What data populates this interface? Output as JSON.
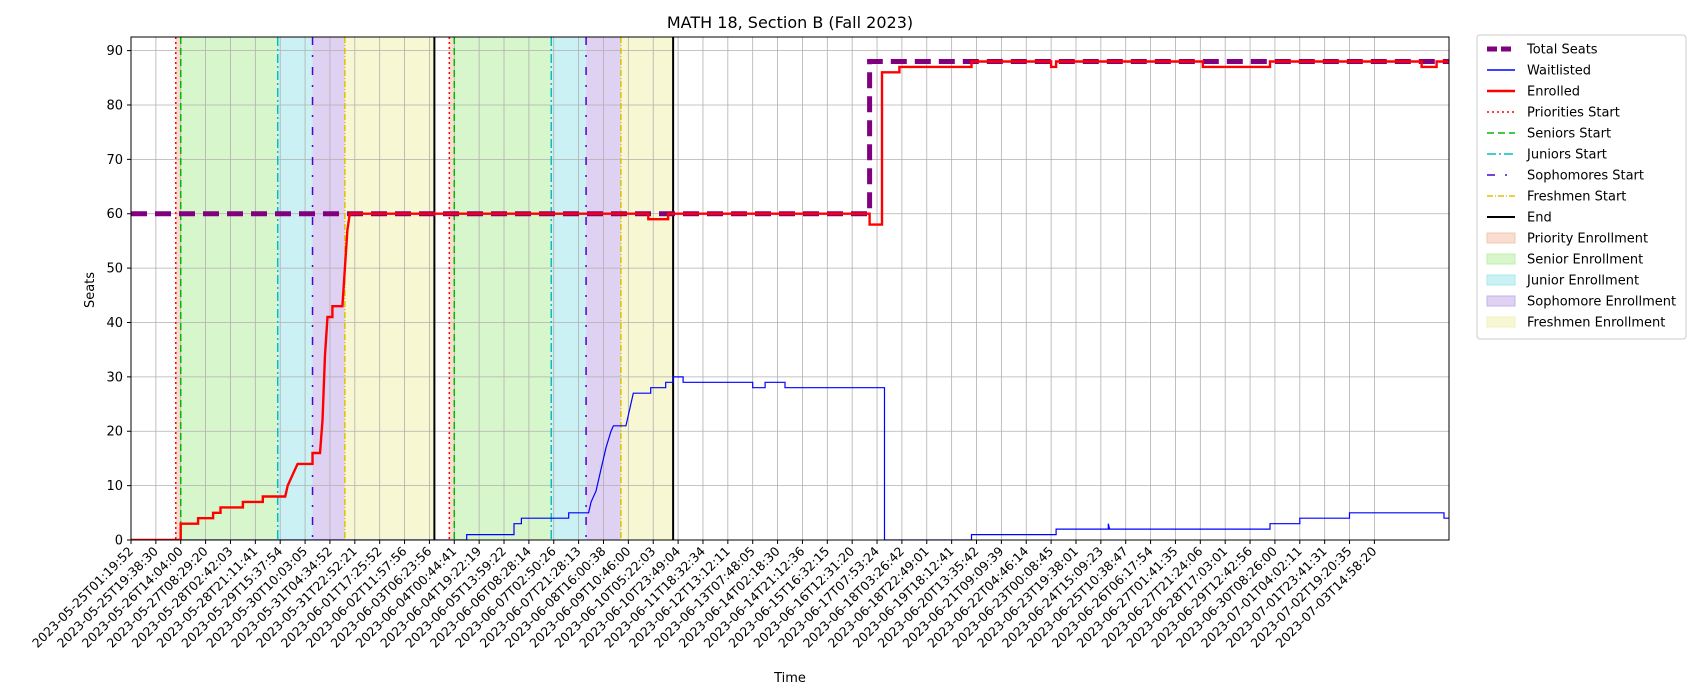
{
  "chart_data": {
    "type": "line",
    "title": "MATH 18, Section B (Fall 2023)",
    "xlabel": "Time",
    "ylabel": "Seats",
    "x_index_range": [
      0,
      53
    ],
    "ylim": [
      0,
      92.5
    ],
    "y_ticks": [
      0,
      10,
      20,
      30,
      40,
      50,
      60,
      70,
      80,
      90
    ],
    "grid": true,
    "legend_position": "outside-right-top",
    "x_tick_labels": [
      "2023-05-25T01:19:52",
      "2023-05-25T19:38:30",
      "2023-05-26T14:04:00",
      "2023-05-27T08:29:20",
      "2023-05-28T02:42:03",
      "2023-05-28T21:11:41",
      "2023-05-29T15:37:54",
      "2023-05-30T10:03:05",
      "2023-05-31T04:34:52",
      "2023-05-31T22:52:21",
      "2023-06-01T17:25:52",
      "2023-06-02T11:57:56",
      "2023-06-03T06:23:56",
      "2023-06-04T00:44:41",
      "2023-06-04T19:22:19",
      "2023-06-05T13:59:22",
      "2023-06-06T08:28:14",
      "2023-06-07T02:50:26",
      "2023-06-07T21:28:13",
      "2023-06-08T16:00:38",
      "2023-06-09T10:46:00",
      "2023-06-10T05:22:03",
      "2023-06-10T23:49:04",
      "2023-06-11T18:32:34",
      "2023-06-12T13:12:11",
      "2023-06-13T07:48:05",
      "2023-06-14T02:18:30",
      "2023-06-14T21:12:36",
      "2023-06-15T16:32:15",
      "2023-06-16T12:31:20",
      "2023-06-17T07:53:24",
      "2023-06-18T03:26:42",
      "2023-06-18T22:49:01",
      "2023-06-19T18:12:41",
      "2023-06-20T13:35:42",
      "2023-06-21T09:09:39",
      "2023-06-22T04:46:14",
      "2023-06-23T00:08:45",
      "2023-06-23T19:38:01",
      "2023-06-24T15:09:23",
      "2023-06-25T10:38:47",
      "2023-06-26T06:17:54",
      "2023-06-27T01:41:35",
      "2023-06-27T21:24:06",
      "2023-06-28T17:03:01",
      "2023-06-29T12:42:56",
      "2023-06-30T08:26:00",
      "2023-07-01T04:02:11",
      "2023-07-01T23:41:31",
      "2023-07-02T19:20:35",
      "2023-07-03T14:58:20"
    ],
    "series": [
      {
        "name": "Total Seats",
        "color": "#800080",
        "style": "thick-dashed",
        "points": [
          [
            0,
            60
          ],
          [
            29.7,
            60
          ],
          [
            29.7,
            88
          ],
          [
            53,
            88
          ]
        ]
      },
      {
        "name": "Waitlisted",
        "color": "#0000ff",
        "style": "solid-thin",
        "points": [
          [
            0,
            0
          ],
          [
            13.5,
            0
          ],
          [
            13.5,
            1
          ],
          [
            15.4,
            1
          ],
          [
            15.4,
            3
          ],
          [
            15.7,
            3
          ],
          [
            15.7,
            4
          ],
          [
            17.6,
            4
          ],
          [
            17.6,
            5
          ],
          [
            18.4,
            5
          ],
          [
            18.5,
            7
          ],
          [
            18.7,
            9
          ],
          [
            18.9,
            13
          ],
          [
            19.1,
            17
          ],
          [
            19.3,
            20
          ],
          [
            19.4,
            21
          ],
          [
            19.9,
            21
          ],
          [
            20.0,
            23
          ],
          [
            20.2,
            27
          ],
          [
            20.9,
            27
          ],
          [
            20.9,
            28
          ],
          [
            21.5,
            28
          ],
          [
            21.5,
            29
          ],
          [
            21.8,
            29
          ],
          [
            21.8,
            30
          ],
          [
            22.2,
            30
          ],
          [
            22.2,
            29
          ],
          [
            25.0,
            29
          ],
          [
            25.0,
            28
          ],
          [
            25.5,
            28
          ],
          [
            25.5,
            29
          ],
          [
            26.3,
            29
          ],
          [
            26.3,
            28
          ],
          [
            30.3,
            28
          ],
          [
            30.3,
            0
          ],
          [
            33.8,
            0
          ],
          [
            33.8,
            1
          ],
          [
            37.2,
            1
          ],
          [
            37.2,
            2
          ],
          [
            39.3,
            2
          ],
          [
            39.3,
            3
          ],
          [
            39.35,
            2
          ],
          [
            45.8,
            2
          ],
          [
            45.8,
            3
          ],
          [
            47.0,
            3
          ],
          [
            47.0,
            4
          ],
          [
            49.0,
            4
          ],
          [
            49.0,
            5
          ],
          [
            52.8,
            5
          ],
          [
            52.8,
            4
          ],
          [
            53.0,
            4
          ]
        ]
      },
      {
        "name": "Enrolled",
        "color": "#ff0000",
        "style": "solid-thick",
        "points": [
          [
            0,
            0
          ],
          [
            2.0,
            0
          ],
          [
            2.0,
            3
          ],
          [
            2.7,
            3
          ],
          [
            2.7,
            4
          ],
          [
            3.3,
            4
          ],
          [
            3.3,
            5
          ],
          [
            3.6,
            5
          ],
          [
            3.6,
            6
          ],
          [
            4.5,
            6
          ],
          [
            4.5,
            7
          ],
          [
            5.3,
            7
          ],
          [
            5.3,
            8
          ],
          [
            6.2,
            8
          ],
          [
            6.3,
            10
          ],
          [
            6.5,
            12
          ],
          [
            6.7,
            14
          ],
          [
            7.3,
            14
          ],
          [
            7.3,
            16
          ],
          [
            7.6,
            16
          ],
          [
            7.7,
            22
          ],
          [
            7.8,
            34
          ],
          [
            7.9,
            41
          ],
          [
            8.1,
            41
          ],
          [
            8.1,
            43
          ],
          [
            8.5,
            43
          ],
          [
            8.6,
            50
          ],
          [
            8.7,
            57
          ],
          [
            8.8,
            60
          ],
          [
            20.8,
            60
          ],
          [
            20.8,
            59
          ],
          [
            21.6,
            59
          ],
          [
            21.6,
            60
          ],
          [
            29.7,
            60
          ],
          [
            29.7,
            58
          ],
          [
            30.2,
            58
          ],
          [
            30.2,
            86
          ],
          [
            30.9,
            86
          ],
          [
            30.9,
            87
          ],
          [
            33.8,
            87
          ],
          [
            33.8,
            88
          ],
          [
            37.0,
            88
          ],
          [
            37.0,
            87
          ],
          [
            37.2,
            87
          ],
          [
            37.2,
            88
          ],
          [
            43.1,
            88
          ],
          [
            43.1,
            87
          ],
          [
            45.8,
            87
          ],
          [
            45.8,
            88
          ],
          [
            51.9,
            88
          ],
          [
            51.9,
            87
          ],
          [
            52.5,
            87
          ],
          [
            52.5,
            88
          ],
          [
            53.0,
            88
          ]
        ]
      }
    ],
    "events": [
      {
        "name": "Priorities Start",
        "color": "#ff0000",
        "style": "dotted",
        "x": [
          1.8,
          12.8
        ]
      },
      {
        "name": "Seniors Start",
        "color": "#00bb00",
        "style": "dashed",
        "x": [
          2.0,
          13.0
        ]
      },
      {
        "name": "Juniors Start",
        "color": "#00c0c0",
        "style": "dashdot",
        "x": [
          5.9,
          16.9
        ]
      },
      {
        "name": "Sophomores Start",
        "color": "#5500cc",
        "style": "loose-dashdot",
        "x": [
          7.3,
          18.3
        ]
      },
      {
        "name": "Freshmen Start",
        "color": "#e0c000",
        "style": "dashdot-thin",
        "x": [
          8.6,
          19.7
        ]
      },
      {
        "name": "End",
        "color": "#000000",
        "style": "solid",
        "x": [
          12.2,
          21.8
        ]
      }
    ],
    "spans": [
      {
        "name": "Priority Enrollment",
        "color": "#f4c7b0",
        "ranges": [
          [
            1.8,
            2.0
          ],
          [
            12.8,
            13.0
          ]
        ]
      },
      {
        "name": "Senior Enrollment",
        "color": "#bdf0a8",
        "ranges": [
          [
            2.0,
            5.9
          ],
          [
            13.0,
            16.9
          ]
        ]
      },
      {
        "name": "Junior Enrollment",
        "color": "#a8e7ec",
        "ranges": [
          [
            5.9,
            7.3
          ],
          [
            16.9,
            18.3
          ]
        ]
      },
      {
        "name": "Sophomore Enrollment",
        "color": "#c8b3ea",
        "ranges": [
          [
            7.3,
            8.6
          ],
          [
            18.3,
            19.7
          ]
        ]
      },
      {
        "name": "Freshmen Enrollment",
        "color": "#f3f2b8",
        "ranges": [
          [
            8.6,
            12.2
          ],
          [
            19.7,
            21.8
          ]
        ]
      }
    ]
  }
}
